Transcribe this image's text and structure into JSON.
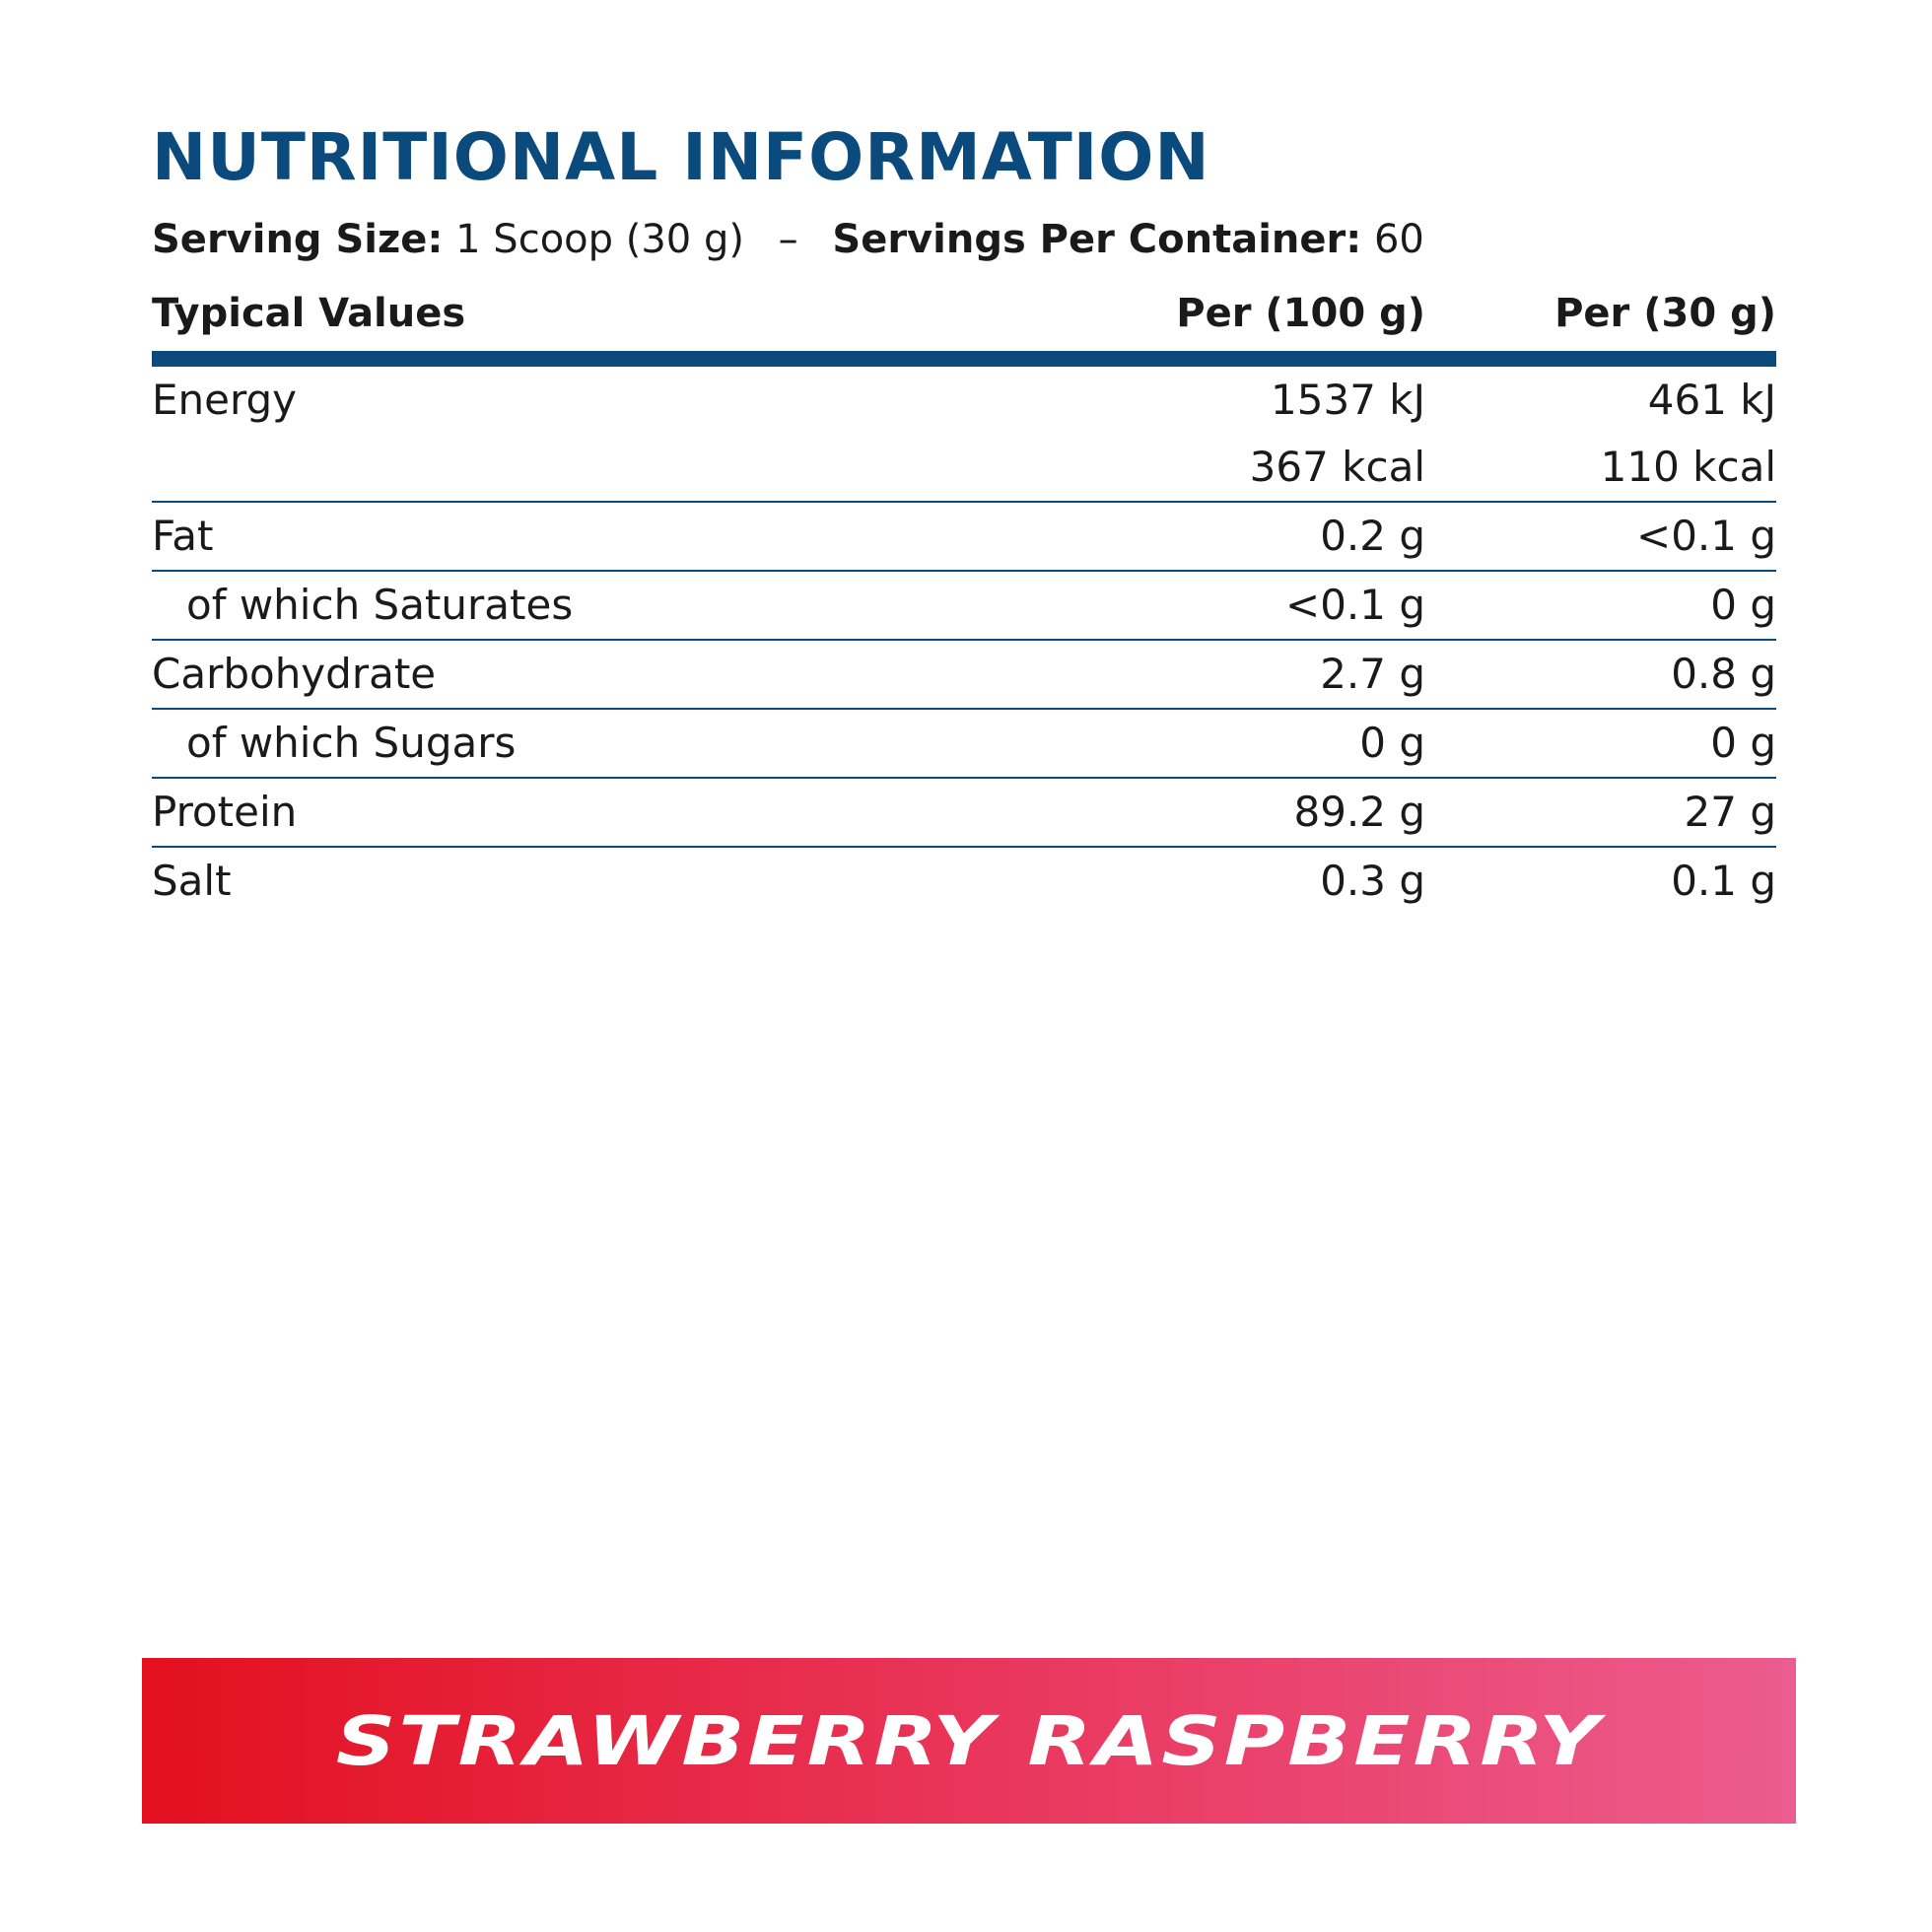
{
  "title": "NUTRITIONAL INFORMATION",
  "serving": {
    "size_label": "Serving Size:",
    "size_value": "1 Scoop (30 g)",
    "separator": "–",
    "per_container_label": "Servings Per Container:",
    "per_container_value": "60"
  },
  "table": {
    "headers": {
      "name": "Typical Values",
      "per100": "Per (100 g)",
      "per30": "Per (30 g)"
    },
    "rows": [
      {
        "name": "Energy",
        "per100": [
          "1537 kJ",
          "367 kcal"
        ],
        "per30": [
          "461 kJ",
          "110 kcal"
        ]
      },
      {
        "name": "Fat",
        "per100": "0.2 g",
        "per30": "<0.1 g"
      },
      {
        "name": "of which Saturates",
        "per100": "<0.1 g",
        "per30": "0 g"
      },
      {
        "name": "Carbohydrate",
        "per100": "2.7 g",
        "per30": "0.8 g"
      },
      {
        "name": "of which Sugars",
        "per100": "0 g",
        "per30": "0 g"
      },
      {
        "name": "Protein",
        "per100": "89.2 g",
        "per30": "27 g"
      },
      {
        "name": "Salt",
        "per100": "0.3 g",
        "per30": "0.1 g"
      }
    ]
  },
  "flavor": "STRAWBERRY RASPBERRY",
  "colors": {
    "heading_blue": "#0b4a7c",
    "banner_start": "#e3101f",
    "banner_end": "#ec5c8e"
  }
}
